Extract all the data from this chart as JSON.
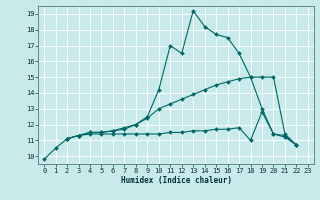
{
  "xlabel": "Humidex (Indice chaleur)",
  "xlim": [
    -0.5,
    23.5
  ],
  "ylim": [
    9.5,
    19.5
  ],
  "xticks": [
    0,
    1,
    2,
    3,
    4,
    5,
    6,
    7,
    8,
    9,
    10,
    11,
    12,
    13,
    14,
    15,
    16,
    17,
    18,
    19,
    20,
    21,
    22,
    23
  ],
  "yticks": [
    10,
    11,
    12,
    13,
    14,
    15,
    16,
    17,
    18,
    19
  ],
  "background_color": "#c8eaea",
  "grid_color": "#b0d8d8",
  "line_color": "#006666",
  "lines": [
    {
      "x": [
        0,
        1,
        2,
        3,
        4,
        5,
        6,
        7,
        8,
        9,
        10,
        11,
        12,
        13,
        14,
        15,
        16,
        17,
        18,
        19,
        20,
        21,
        22
      ],
      "y": [
        9.8,
        10.5,
        11.1,
        11.3,
        11.5,
        11.5,
        11.6,
        11.7,
        12.0,
        12.5,
        14.2,
        17.0,
        16.5,
        19.2,
        18.2,
        17.7,
        17.5,
        16.5,
        15.0,
        13.0,
        11.4,
        11.2,
        10.7
      ]
    },
    {
      "x": [
        2,
        3,
        4,
        5,
        6,
        7,
        8,
        9,
        10,
        11,
        12,
        13,
        14,
        15,
        16,
        17,
        18,
        19,
        20,
        21,
        22
      ],
      "y": [
        11.1,
        11.3,
        11.5,
        11.5,
        11.6,
        11.8,
        12.0,
        12.4,
        13.0,
        13.3,
        13.6,
        13.9,
        14.2,
        14.5,
        14.7,
        14.9,
        15.0,
        15.0,
        15.0,
        11.4,
        10.7
      ]
    },
    {
      "x": [
        2,
        3,
        4,
        5,
        6,
        7,
        8,
        9,
        10,
        11,
        12,
        13,
        14,
        15,
        16,
        17,
        18,
        19,
        20,
        21,
        22
      ],
      "y": [
        11.1,
        11.3,
        11.4,
        11.4,
        11.4,
        11.4,
        11.4,
        11.4,
        11.4,
        11.5,
        11.5,
        11.6,
        11.6,
        11.7,
        11.7,
        11.8,
        11.0,
        12.8,
        11.4,
        11.3,
        10.7
      ]
    }
  ]
}
